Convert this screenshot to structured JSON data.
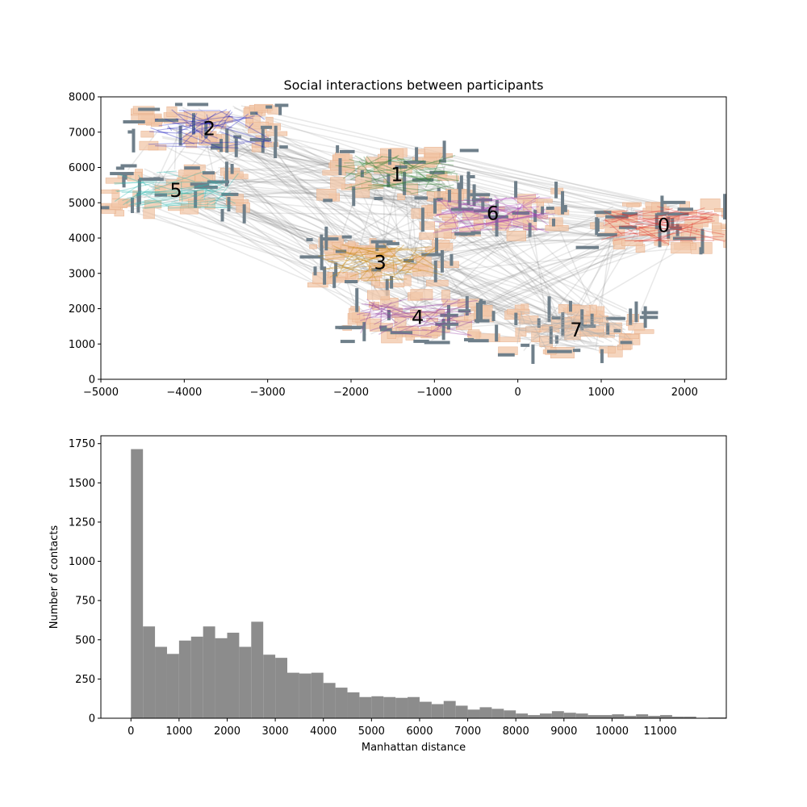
{
  "chart_data": [
    {
      "type": "scatter",
      "title": "Social interactions between participants",
      "xlim": [
        -5000,
        2500
      ],
      "ylim": [
        0,
        8000
      ],
      "xticks": [
        -5000,
        -4000,
        -3000,
        -2000,
        -1000,
        0,
        1000,
        2000
      ],
      "yticks": [
        0,
        1000,
        2000,
        3000,
        4000,
        5000,
        6000,
        7000,
        8000
      ],
      "grid": false,
      "clusters": [
        {
          "label": "0",
          "x": 1750,
          "y": 4350,
          "color": "#e0302b"
        },
        {
          "label": "1",
          "x": -1450,
          "y": 5800,
          "color": "#2e7d32"
        },
        {
          "label": "2",
          "x": -3700,
          "y": 7100,
          "color": "#1f1fbf"
        },
        {
          "label": "3",
          "x": -1650,
          "y": 3300,
          "color": "#c8860a"
        },
        {
          "label": "4",
          "x": -1200,
          "y": 1750,
          "color": "#8e3a9e"
        },
        {
          "label": "5",
          "x": -4100,
          "y": 5350,
          "color": "#2fb8b0"
        },
        {
          "label": "6",
          "x": -300,
          "y": 4700,
          "color": "#a63fb5"
        },
        {
          "label": "7",
          "x": 700,
          "y": 1400,
          "color": "#b0b0b0"
        }
      ]
    },
    {
      "type": "bar",
      "xlabel": "Manhattan distance",
      "ylabel": "Number of contacts",
      "bin_width": 250,
      "bin_start": 0,
      "xlim": [
        -625,
        12375
      ],
      "ylim": [
        0,
        1800
      ],
      "xticks": [
        0,
        1000,
        2000,
        3000,
        4000,
        5000,
        6000,
        7000,
        8000,
        9000,
        10000,
        11000
      ],
      "yticks": [
        0,
        250,
        500,
        750,
        1000,
        1250,
        1500,
        1750
      ],
      "color": "#8c8c8c",
      "values": [
        1715,
        585,
        455,
        410,
        495,
        520,
        585,
        510,
        545,
        455,
        615,
        405,
        385,
        290,
        285,
        290,
        225,
        195,
        165,
        135,
        140,
        135,
        130,
        135,
        105,
        90,
        110,
        80,
        55,
        70,
        60,
        50,
        30,
        20,
        30,
        45,
        35,
        30,
        20,
        20,
        25,
        15,
        25,
        15,
        20,
        10,
        10,
        0,
        5,
        5,
        0,
        0,
        0,
        0,
        0,
        0,
        0,
        0,
        0,
        0,
        0,
        0,
        0,
        0,
        0,
        0,
        0,
        0,
        0,
        0,
        0,
        0,
        0,
        0,
        0,
        0,
        0,
        0,
        0,
        0,
        0,
        0,
        0,
        0,
        0,
        0,
        0,
        0,
        0,
        0,
        0,
        0,
        0,
        0,
        0,
        0,
        0,
        0,
        0,
        0,
        0,
        0,
        0,
        0,
        0,
        0,
        0,
        0,
        0,
        0,
        0,
        0,
        0,
        0,
        0,
        0,
        0,
        0,
        0,
        0,
        0,
        0,
        0,
        0,
        0,
        0,
        0,
        0
      ]
    }
  ]
}
